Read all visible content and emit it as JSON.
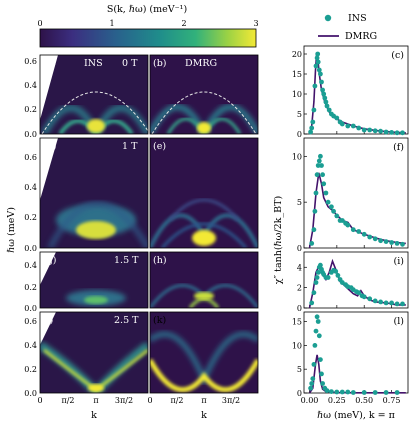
{
  "colorbar": {
    "label": "S(k, ℏω)  (meV⁻¹)",
    "ticks": [
      "0",
      "1",
      "2",
      "3"
    ],
    "range": [
      0,
      3
    ]
  },
  "legend": {
    "ins": "INS",
    "dmrg": "DMRG"
  },
  "heatmaps": {
    "ylabel": "ℏω (meV)",
    "xlabel": "k",
    "yticks": [
      "0.0",
      "0.2",
      "0.4",
      "0.6"
    ],
    "yticks_short": [
      "0",
      "1"
    ],
    "xticks": [
      "0",
      "π/2",
      "π",
      "3π/2"
    ],
    "xticks_right": [
      "0",
      "π/2",
      "π",
      "3π/2"
    ],
    "panels": [
      {
        "id": "a",
        "label": "(a)",
        "text": "INS",
        "field": "0 T"
      },
      {
        "id": "b",
        "label": "(b)",
        "text": "DMRG",
        "field": ""
      },
      {
        "id": "d",
        "label": "(d)",
        "text": "",
        "field": "1 T"
      },
      {
        "id": "e",
        "label": "(e)",
        "text": "",
        "field": ""
      },
      {
        "id": "g",
        "label": "(g)",
        "text": "",
        "field": "1.5 T"
      },
      {
        "id": "h",
        "label": "(h)",
        "text": "",
        "field": ""
      },
      {
        "id": "j",
        "label": "(j)",
        "text": "",
        "field": "2.5 T"
      },
      {
        "id": "k",
        "label": "(k)",
        "text": "",
        "field": ""
      }
    ]
  },
  "right_column": {
    "ylabel": "χ″ tanh(ℏω/2k_BT)",
    "xlabel": "ℏω (meV), k = π",
    "xticks": [
      "0.00",
      "0.25",
      "0.50",
      "0.75"
    ],
    "xlim": [
      -0.05,
      0.9
    ],
    "chart_data": [
      {
        "type": "scatter",
        "label": "(c)",
        "yticks": [
          "0",
          "5",
          "10",
          "15",
          "20"
        ],
        "ylim": [
          0,
          22
        ],
        "ins": [
          [
            0.01,
            0.5
          ],
          [
            0.02,
            1.5
          ],
          [
            0.03,
            3
          ],
          [
            0.04,
            6
          ],
          [
            0.05,
            12
          ],
          [
            0.06,
            17
          ],
          [
            0.07,
            19
          ],
          [
            0.075,
            20
          ],
          [
            0.08,
            18
          ],
          [
            0.09,
            16
          ],
          [
            0.1,
            15
          ],
          [
            0.11,
            13
          ],
          [
            0.12,
            11
          ],
          [
            0.13,
            10
          ],
          [
            0.14,
            9
          ],
          [
            0.15,
            8
          ],
          [
            0.16,
            7
          ],
          [
            0.18,
            6
          ],
          [
            0.2,
            5
          ],
          [
            0.22,
            4.5
          ],
          [
            0.25,
            4
          ],
          [
            0.28,
            3
          ],
          [
            0.3,
            2.5
          ],
          [
            0.35,
            2
          ],
          [
            0.4,
            2
          ],
          [
            0.45,
            1.5
          ],
          [
            0.5,
            1
          ],
          [
            0.55,
            1
          ],
          [
            0.6,
            0.8
          ],
          [
            0.65,
            0.7
          ],
          [
            0.7,
            0.5
          ],
          [
            0.75,
            0.4
          ],
          [
            0.8,
            0.3
          ],
          [
            0.85,
            0.3
          ]
        ],
        "dmrg": [
          [
            0.0,
            0
          ],
          [
            0.02,
            2
          ],
          [
            0.04,
            8
          ],
          [
            0.055,
            16
          ],
          [
            0.065,
            20
          ],
          [
            0.075,
            19
          ],
          [
            0.09,
            15
          ],
          [
            0.11,
            11
          ],
          [
            0.14,
            8
          ],
          [
            0.18,
            5.5
          ],
          [
            0.22,
            4.2
          ],
          [
            0.3,
            3
          ],
          [
            0.4,
            2
          ],
          [
            0.5,
            1.3
          ],
          [
            0.6,
            0.9
          ],
          [
            0.7,
            0.6
          ],
          [
            0.8,
            0.4
          ],
          [
            0.88,
            0.3
          ]
        ]
      },
      {
        "type": "scatter",
        "label": "(f)",
        "yticks": [
          "0",
          "5",
          "10"
        ],
        "ylim": [
          0,
          12
        ],
        "ins": [
          [
            0.02,
            0.5
          ],
          [
            0.04,
            2
          ],
          [
            0.05,
            4
          ],
          [
            0.06,
            6
          ],
          [
            0.07,
            8
          ],
          [
            0.08,
            9
          ],
          [
            0.09,
            9.5
          ],
          [
            0.1,
            10
          ],
          [
            0.11,
            9
          ],
          [
            0.12,
            8
          ],
          [
            0.13,
            7
          ],
          [
            0.15,
            6
          ],
          [
            0.17,
            5
          ],
          [
            0.2,
            4.5
          ],
          [
            0.22,
            4
          ],
          [
            0.25,
            3.5
          ],
          [
            0.28,
            3
          ],
          [
            0.3,
            3
          ],
          [
            0.33,
            2.7
          ],
          [
            0.35,
            2.5
          ],
          [
            0.4,
            2
          ],
          [
            0.45,
            1.8
          ],
          [
            0.5,
            1.5
          ],
          [
            0.55,
            1.2
          ],
          [
            0.6,
            1
          ],
          [
            0.65,
            0.8
          ],
          [
            0.7,
            0.7
          ],
          [
            0.75,
            0.6
          ],
          [
            0.8,
            0.5
          ],
          [
            0.85,
            0.4
          ]
        ],
        "dmrg": [
          [
            0.0,
            0
          ],
          [
            0.03,
            2
          ],
          [
            0.06,
            6
          ],
          [
            0.085,
            8.2
          ],
          [
            0.11,
            7
          ],
          [
            0.13,
            5.5
          ],
          [
            0.17,
            4.5
          ],
          [
            0.2,
            4.2
          ],
          [
            0.25,
            3.6
          ],
          [
            0.3,
            3
          ],
          [
            0.35,
            2.8
          ],
          [
            0.4,
            2
          ],
          [
            0.5,
            1.5
          ],
          [
            0.6,
            1.1
          ],
          [
            0.7,
            0.8
          ],
          [
            0.8,
            0.6
          ],
          [
            0.88,
            0.5
          ]
        ]
      },
      {
        "type": "scatter",
        "label": "(i)",
        "yticks": [
          "0",
          "2",
          "4"
        ],
        "ylim": [
          0,
          5.5
        ],
        "ins": [
          [
            0.02,
            0.5
          ],
          [
            0.04,
            1.5
          ],
          [
            0.06,
            2.5
          ],
          [
            0.07,
            3
          ],
          [
            0.08,
            3.5
          ],
          [
            0.09,
            4
          ],
          [
            0.1,
            4.2
          ],
          [
            0.11,
            3.8
          ],
          [
            0.12,
            3.5
          ],
          [
            0.13,
            3.3
          ],
          [
            0.15,
            3
          ],
          [
            0.17,
            3
          ],
          [
            0.2,
            3.5
          ],
          [
            0.22,
            3.7
          ],
          [
            0.24,
            3.6
          ],
          [
            0.26,
            3.2
          ],
          [
            0.28,
            2.8
          ],
          [
            0.3,
            2.5
          ],
          [
            0.33,
            2.3
          ],
          [
            0.35,
            2.1
          ],
          [
            0.38,
            2
          ],
          [
            0.4,
            1.8
          ],
          [
            0.43,
            1.6
          ],
          [
            0.45,
            1.5
          ],
          [
            0.48,
            1.2
          ],
          [
            0.5,
            1.1
          ],
          [
            0.55,
            0.9
          ],
          [
            0.6,
            0.7
          ],
          [
            0.65,
            0.6
          ],
          [
            0.7,
            0.5
          ],
          [
            0.75,
            0.5
          ],
          [
            0.8,
            0.4
          ],
          [
            0.85,
            0.4
          ]
        ],
        "dmrg": [
          [
            0.0,
            0
          ],
          [
            0.03,
            1.5
          ],
          [
            0.06,
            3.5
          ],
          [
            0.09,
            4.2
          ],
          [
            0.12,
            3.3
          ],
          [
            0.15,
            2.8
          ],
          [
            0.18,
            3.5
          ],
          [
            0.21,
            4.6
          ],
          [
            0.24,
            3.8
          ],
          [
            0.28,
            2.6
          ],
          [
            0.32,
            2.2
          ],
          [
            0.36,
            1.8
          ],
          [
            0.4,
            1.4
          ],
          [
            0.44,
            1.2
          ],
          [
            0.47,
            1.7
          ],
          [
            0.5,
            1.2
          ],
          [
            0.55,
            0.8
          ],
          [
            0.6,
            0.6
          ],
          [
            0.7,
            0.5
          ],
          [
            0.8,
            0.3
          ],
          [
            0.88,
            0.3
          ]
        ]
      },
      {
        "type": "scatter",
        "label": "(l)",
        "yticks": [
          "0",
          "5",
          "10",
          "15"
        ],
        "ylim": [
          0,
          17
        ],
        "ins": [
          [
            0.01,
            1
          ],
          [
            0.02,
            2
          ],
          [
            0.03,
            3
          ],
          [
            0.04,
            6
          ],
          [
            0.05,
            10
          ],
          [
            0.06,
            13
          ],
          [
            0.07,
            16
          ],
          [
            0.08,
            15
          ],
          [
            0.09,
            12
          ],
          [
            0.1,
            7
          ],
          [
            0.11,
            4
          ],
          [
            0.12,
            2
          ],
          [
            0.14,
            1
          ],
          [
            0.16,
            0.5
          ],
          [
            0.2,
            0.3
          ],
          [
            0.25,
            0.2
          ],
          [
            0.3,
            0.2
          ],
          [
            0.35,
            0.2
          ],
          [
            0.4,
            0.1
          ],
          [
            0.5,
            0.1
          ],
          [
            0.6,
            0.1
          ],
          [
            0.7,
            0.1
          ],
          [
            0.8,
            0.1
          ]
        ],
        "dmrg": [
          [
            0.0,
            0
          ],
          [
            0.03,
            1
          ],
          [
            0.055,
            6
          ],
          [
            0.07,
            8
          ],
          [
            0.085,
            6
          ],
          [
            0.1,
            2.5
          ],
          [
            0.12,
            0.8
          ],
          [
            0.15,
            0.3
          ],
          [
            0.25,
            0.1
          ],
          [
            0.4,
            0.05
          ],
          [
            0.6,
            0.05
          ],
          [
            0.88,
            0.05
          ]
        ]
      }
    ]
  },
  "colors": {
    "ins_marker": "#1b9e93",
    "dmrg_line": "#43136b",
    "cmap_low": "#2e1249",
    "cmap_high": "#f3e936",
    "dashed_curve": "#e6e6e6"
  }
}
